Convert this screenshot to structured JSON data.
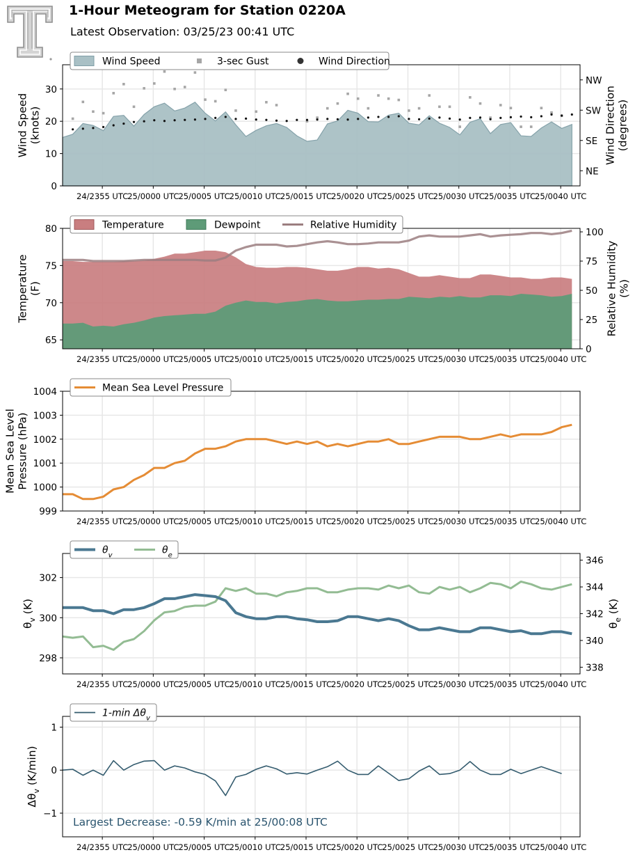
{
  "header": {
    "title": "1-Hour Meteogram for Station 0220A",
    "subtitle": "Latest Observation: 03/25/23 00:41 UTC"
  },
  "colors": {
    "wind_fill": "#a9c0c5",
    "wind_edge": "#7f9ea6",
    "gust": "#a6a6a6",
    "direction": "#111111",
    "temperature": "#c97e80",
    "dewpoint": "#5e9b78",
    "rh": "#9b7e80",
    "pressure": "#e58c35",
    "theta_v": "#4a7891",
    "theta_e": "#93bc93",
    "dtheta": "#335b6e",
    "annotation": "#2a546e",
    "grid": "#e6e6e6"
  },
  "chart_data": [
    {
      "type": "area",
      "title": "",
      "xlabel": "",
      "ylabel": "Wind Speed\n(knots)",
      "ylabel_right": "Wind Direction\n(degrees)",
      "x_tick_labels": [
        "24/2355 UTC",
        "25/0000 UTC",
        "25/0005 UTC",
        "25/0010 UTC",
        "25/0015 UTC",
        "25/0020 UTC",
        "25/0025 UTC",
        "25/0030 UTC",
        "25/0035 UTC",
        "25/0040 UTC"
      ],
      "x_minutes": [
        0,
        1,
        2,
        3,
        4,
        5,
        6,
        7,
        8,
        9,
        10,
        11,
        12,
        13,
        14,
        15,
        16,
        17,
        18,
        19,
        20,
        21,
        22,
        23,
        24,
        25,
        26,
        27,
        28,
        29,
        30,
        31,
        32,
        33,
        34,
        35,
        36,
        37,
        38,
        39,
        40,
        41,
        42,
        43,
        44,
        45,
        46,
        47,
        48,
        49,
        50
      ],
      "ylim": [
        0,
        37.5
      ],
      "yticks": [
        0,
        10,
        20,
        30
      ],
      "ylim_right": [
        0,
        360
      ],
      "yticks_right": [
        45,
        135,
        225,
        315
      ],
      "ytick_labels_right": [
        "NE",
        "SE",
        "SW",
        "NW"
      ],
      "grid": true,
      "legend_placement": "top-left",
      "series": [
        {
          "name": "Wind Speed",
          "kind": "area",
          "values": [
            15,
            16,
            19.3,
            18.7,
            17.1,
            21.5,
            21.8,
            18.5,
            22.1,
            24.5,
            25.6,
            23.2,
            24.1,
            25.9,
            22.5,
            20.1,
            22.9,
            18.9,
            15.3,
            17.2,
            18.6,
            19.3,
            18.1,
            15.5,
            13.8,
            14.2,
            19.2,
            20.1,
            23.4,
            22.5,
            19.9,
            19.8,
            21.9,
            22.5,
            19.4,
            18.9,
            21.7,
            19.4,
            18.1,
            15.8,
            19.7,
            20.8,
            16.2,
            19,
            19.6,
            15.5,
            15.3,
            17.9,
            19.8,
            17.8,
            19
          ]
        },
        {
          "name": "3-sec Gust",
          "kind": "markers",
          "values": [
            null,
            20.8,
            26,
            23,
            22.5,
            28.7,
            31.5,
            24.5,
            30.2,
            31.7,
            35.4,
            30,
            30.6,
            35.1,
            26.7,
            26.2,
            29.7,
            23.3,
            null,
            23,
            25.9,
            25,
            null,
            null,
            20,
            21.1,
            24,
            25.5,
            28.5,
            27,
            24,
            28,
            27,
            26.6,
            23.3,
            24,
            28,
            24.5,
            24.5,
            18.3,
            27.4,
            25.5,
            21.1,
            25,
            24.1,
            18.3,
            18.3,
            24.1,
            22.7,
            21.7,
            null
          ]
        },
        {
          "name": "Wind Direction",
          "kind": "markers",
          "values": [
            null,
            168,
            170,
            172,
            175,
            180,
            185,
            190,
            192,
            195,
            193,
            195,
            196,
            197,
            199,
            202,
            205,
            199,
            200,
            197,
            196,
            194,
            193,
            196,
            196,
            197,
            199,
            198,
            197,
            199,
            203,
            205,
            205,
            207,
            199,
            198,
            200,
            203,
            200,
            197,
            202,
            203,
            198,
            202,
            204,
            206,
            204,
            207,
            212,
            209,
            212
          ]
        }
      ]
    },
    {
      "type": "area",
      "title": "",
      "xlabel": "",
      "ylabel": "Temperature\n(F)",
      "ylabel_right": "Relative Humidity\n(%)",
      "x_tick_labels": [
        "24/2355 UTC",
        "25/0000 UTC",
        "25/0005 UTC",
        "25/0010 UTC",
        "25/0015 UTC",
        "25/0020 UTC",
        "25/0025 UTC",
        "25/0030 UTC",
        "25/0035 UTC",
        "25/0040 UTC"
      ],
      "ylim": [
        63.8,
        80
      ],
      "yticks": [
        65,
        70,
        75,
        80
      ],
      "ylim_right": [
        0,
        103
      ],
      "yticks_right": [
        0,
        25,
        50,
        75,
        100
      ],
      "grid": true,
      "legend_placement": "top-left",
      "series": [
        {
          "name": "Temperature",
          "kind": "area",
          "values": [
            75.6,
            75.6,
            75.5,
            75.5,
            75.5,
            75.5,
            75.6,
            75.6,
            75.7,
            75.9,
            76.2,
            76.6,
            76.6,
            76.8,
            77,
            77,
            76.8,
            76.1,
            75.2,
            74.8,
            74.7,
            74.7,
            74.8,
            74.8,
            74.7,
            74.5,
            74.3,
            74.3,
            74.5,
            74.8,
            74.8,
            74.6,
            74.7,
            74.5,
            74,
            73.5,
            73.5,
            73.7,
            73.5,
            73.3,
            73.3,
            73.8,
            73.8,
            73.6,
            73.4,
            73.4,
            73.2,
            73.2,
            73.4,
            73.4,
            73.2
          ]
        },
        {
          "name": "Dewpoint",
          "kind": "area",
          "values": [
            67.2,
            67.2,
            67.3,
            66.8,
            66.9,
            66.8,
            67.1,
            67.3,
            67.6,
            68,
            68.2,
            68.3,
            68.4,
            68.5,
            68.5,
            68.8,
            69.6,
            70,
            70.3,
            70.1,
            70.1,
            69.9,
            70.1,
            70.2,
            70.4,
            70.5,
            70.3,
            70.2,
            70.2,
            70.3,
            70.4,
            70.4,
            70.5,
            70.5,
            70.8,
            70.7,
            70.6,
            70.8,
            70.7,
            70.9,
            70.7,
            70.7,
            71,
            71,
            70.9,
            71.2,
            71.1,
            71,
            70.8,
            70.9,
            71.2
          ]
        },
        {
          "name": "Relative Humidity",
          "kind": "line",
          "values": [
            76,
            76,
            76,
            75,
            75,
            75,
            75,
            75.5,
            76,
            76,
            76,
            76,
            76,
            76,
            75.5,
            75.5,
            78,
            84,
            87,
            89,
            89,
            89,
            87.5,
            88,
            89.5,
            91,
            92,
            91,
            89.5,
            89.5,
            90,
            91,
            91,
            91,
            92.5,
            96,
            97,
            96,
            96,
            96,
            97,
            98,
            96,
            97,
            97.5,
            98,
            99,
            99,
            98,
            99,
            101
          ]
        }
      ]
    },
    {
      "type": "line",
      "title": "",
      "xlabel": "",
      "ylabel": "Mean Sea Level\nPressure (hPa)",
      "x_tick_labels": [
        "24/2355 UTC",
        "25/0000 UTC",
        "25/0005 UTC",
        "25/0010 UTC",
        "25/0015 UTC",
        "25/0020 UTC",
        "25/0025 UTC",
        "25/0030 UTC",
        "25/0035 UTC",
        "25/0040 UTC"
      ],
      "ylim": [
        999,
        1004
      ],
      "yticks": [
        999,
        1000,
        1001,
        1002,
        1003,
        1004
      ],
      "grid": true,
      "legend_placement": "top-left",
      "series": [
        {
          "name": "Mean Sea Level Pressure",
          "values": [
            999.7,
            999.7,
            999.5,
            999.5,
            999.6,
            999.9,
            1000,
            1000.3,
            1000.5,
            1000.8,
            1000.8,
            1001,
            1001.1,
            1001.4,
            1001.6,
            1001.6,
            1001.7,
            1001.9,
            1002,
            1002,
            1002,
            1001.9,
            1001.8,
            1001.9,
            1001.8,
            1001.9,
            1001.7,
            1001.8,
            1001.7,
            1001.8,
            1001.9,
            1001.9,
            1002,
            1001.8,
            1001.8,
            1001.9,
            1002,
            1002.1,
            1002.1,
            1002.1,
            1002,
            1002,
            1002.1,
            1002.2,
            1002.1,
            1002.2,
            1002.2,
            1002.2,
            1002.3,
            1002.5,
            1002.6
          ]
        }
      ]
    },
    {
      "type": "line",
      "title": "",
      "xlabel": "",
      "ylabel": "θv (K)",
      "ylabel_right": "θe (K)",
      "x_tick_labels": [
        "24/2355 UTC",
        "25/0000 UTC",
        "25/0005 UTC",
        "25/0010 UTC",
        "25/0015 UTC",
        "25/0020 UTC",
        "25/0025 UTC",
        "25/0030 UTC",
        "25/0035 UTC",
        "25/0040 UTC"
      ],
      "ylim": [
        297.2,
        303.2
      ],
      "yticks": [
        298,
        300,
        302
      ],
      "ylim_right": [
        337.5,
        346.5
      ],
      "yticks_right": [
        338,
        340,
        342,
        344,
        346
      ],
      "grid": true,
      "legend_placement": "top-left",
      "series": [
        {
          "name": "θv",
          "values": [
            300.5,
            300.5,
            300.5,
            300.35,
            300.35,
            300.2,
            300.4,
            300.4,
            300.5,
            300.7,
            300.95,
            300.95,
            301.05,
            301.15,
            301.1,
            301.05,
            300.85,
            300.25,
            300.05,
            299.95,
            299.95,
            300.05,
            300.05,
            299.95,
            299.9,
            299.8,
            299.8,
            299.85,
            300.05,
            300.05,
            299.95,
            299.85,
            299.95,
            299.85,
            299.6,
            299.4,
            299.4,
            299.5,
            299.4,
            299.3,
            299.3,
            299.5,
            299.5,
            299.4,
            299.3,
            299.35,
            299.2,
            299.2,
            299.3,
            299.3,
            299.2
          ]
        },
        {
          "name": "θe",
          "values": [
            340.3,
            340.2,
            340.3,
            339.5,
            339.6,
            339.3,
            339.9,
            340.1,
            340.7,
            341.5,
            342.1,
            342.2,
            342.5,
            342.6,
            342.6,
            342.9,
            343.9,
            343.7,
            343.9,
            343.5,
            343.5,
            343.3,
            343.6,
            343.7,
            343.9,
            343.9,
            343.6,
            343.6,
            343.8,
            343.9,
            343.9,
            343.8,
            344.1,
            343.9,
            344.1,
            343.6,
            343.5,
            344,
            343.8,
            344,
            343.6,
            343.9,
            344.3,
            344.2,
            343.9,
            344.4,
            344.2,
            343.9,
            343.8,
            344,
            344.2
          ]
        }
      ]
    },
    {
      "type": "line",
      "title": "",
      "xlabel": "",
      "ylabel": "Δθv (K/min)",
      "x_tick_labels": [
        "24/2355 UTC",
        "25/0000 UTC",
        "25/0005 UTC",
        "25/0010 UTC",
        "25/0015 UTC",
        "25/0020 UTC",
        "25/0025 UTC",
        "25/0030 UTC",
        "25/0035 UTC",
        "25/0040 UTC"
      ],
      "ylim": [
        -1.55,
        1.25
      ],
      "yticks": [
        -1,
        0,
        1
      ],
      "grid": true,
      "legend_placement": "top-left",
      "annotation": "Largest Decrease: -0.59 K/min at 25/00:08 UTC",
      "series": [
        {
          "name": "1-min Δθv",
          "values": [
            0,
            0.02,
            -0.12,
            0,
            -0.12,
            0.22,
            0,
            0.13,
            0.21,
            0.22,
            0,
            0.1,
            0.05,
            -0.04,
            -0.1,
            -0.25,
            -0.59,
            -0.16,
            -0.1,
            0.02,
            0.1,
            0.03,
            -0.09,
            -0.06,
            -0.09,
            0,
            0.08,
            0.21,
            0,
            -0.1,
            -0.1,
            0.1,
            -0.07,
            -0.24,
            -0.2,
            -0.02,
            0.1,
            -0.1,
            -0.08,
            0,
            0.2,
            0,
            -0.1,
            -0.1,
            0.02,
            -0.08,
            0,
            0.08,
            0,
            -0.08
          ]
        }
      ]
    }
  ]
}
